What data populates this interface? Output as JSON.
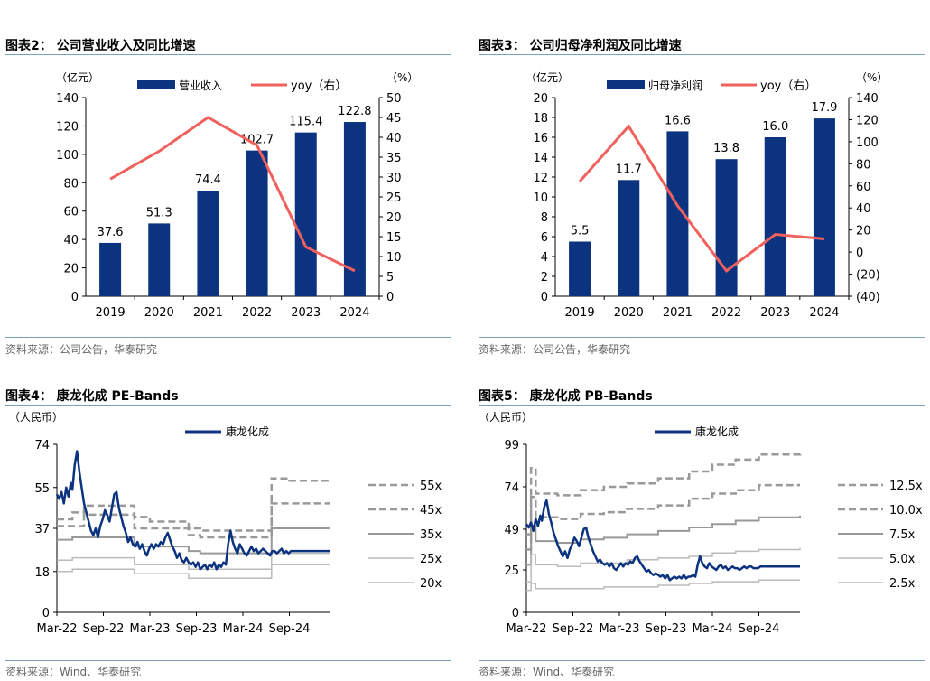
{
  "colors": {
    "bar": "#0b3380",
    "yoy": "#f0605c",
    "line": "#0b3380",
    "band_dark": "#999999",
    "band_light": "#bbbbbb"
  },
  "panels": [
    {
      "title": "图表2： 公司营业收入及同比增速",
      "source": "资料来源：公司公告，华泰研究",
      "left_unit": "（亿元）",
      "right_unit": "（%）",
      "legend": [
        "营业收入",
        "yoy（右）"
      ]
    },
    {
      "title": "图表3： 公司归母净利润及同比增速",
      "source": "资料来源：公司公告，华泰研究",
      "left_unit": "（亿元）",
      "right_unit": "（%）",
      "legend": [
        "归母净利润",
        "yoy（右）"
      ]
    },
    {
      "title": "图表4： 康龙化成 PE-Bands",
      "source": "资料来源：Wind、华泰研究",
      "left_unit": "（人民币）",
      "legend": [
        "康龙化成"
      ]
    },
    {
      "title": "图表5： 康龙化成 PB-Bands",
      "source": "资料来源：Wind、华泰研究",
      "left_unit": "（人民币）",
      "legend": [
        "康龙化成"
      ]
    }
  ],
  "chart_data": [
    {
      "type": "bar",
      "categories": [
        "2019",
        "2020",
        "2021",
        "2022",
        "2023",
        "2024"
      ],
      "series": [
        {
          "name": "营业收入",
          "type": "bar",
          "axis": "left",
          "values": [
            37.6,
            51.3,
            74.4,
            102.7,
            115.4,
            122.8
          ],
          "labels": [
            "37.6",
            "51.3",
            "74.4",
            "102.7",
            "115.4",
            "122.8"
          ]
        },
        {
          "name": "yoy（右）",
          "type": "line",
          "axis": "right",
          "values": [
            29.5,
            36.5,
            45.0,
            38.0,
            12.4,
            6.4
          ]
        }
      ],
      "ylim": [
        0,
        140
      ],
      "yticks": [
        "0",
        "20",
        "40",
        "60",
        "80",
        "100",
        "120",
        "140"
      ],
      "y2lim": [
        0,
        50
      ],
      "y2ticks": [
        "0",
        "5",
        "10",
        "15",
        "20",
        "25",
        "30",
        "35",
        "40",
        "45",
        "50"
      ],
      "legend_position": "top"
    },
    {
      "type": "bar",
      "categories": [
        "2019",
        "2020",
        "2021",
        "2022",
        "2023",
        "2024"
      ],
      "series": [
        {
          "name": "归母净利润",
          "type": "bar",
          "axis": "left",
          "values": [
            5.5,
            11.7,
            16.6,
            13.8,
            16.0,
            17.9
          ],
          "labels": [
            "5.5",
            "11.7",
            "16.6",
            "13.8",
            "16.0",
            "17.9"
          ]
        },
        {
          "name": "yoy（右）",
          "type": "line",
          "axis": "right",
          "values": [
            64,
            114,
            42,
            -17,
            16,
            12
          ]
        }
      ],
      "ylim": [
        0,
        20
      ],
      "yticks": [
        "0",
        "2",
        "4",
        "6",
        "8",
        "10",
        "12",
        "14",
        "16",
        "18",
        "20"
      ],
      "y2lim": [
        -40,
        140
      ],
      "y2ticks": [
        "(40)",
        "(20)",
        "0",
        "20",
        "40",
        "60",
        "80",
        "100",
        "120",
        "140"
      ],
      "legend_position": "top"
    },
    {
      "type": "line",
      "x_range": [
        "2022-03",
        "2025-02"
      ],
      "xticks": [
        "Mar-22",
        "Sep-22",
        "Mar-23",
        "Sep-23",
        "Mar-24",
        "Sep-24"
      ],
      "ylim": [
        0,
        74
      ],
      "yticks": [
        "0",
        "18",
        "37",
        "55",
        "74"
      ],
      "price_series": {
        "name": "康龙化成",
        "x": [
          0,
          0.3,
          0.6,
          0.9,
          1.2,
          1.5,
          1.8,
          2.0,
          2.3,
          2.6,
          2.9,
          3.2,
          3.5,
          3.8,
          4.1,
          4.4,
          4.7,
          5.0,
          5.3,
          5.6,
          5.9,
          6.2,
          6.5,
          6.8,
          7.1,
          7.4,
          7.7,
          8.0,
          8.3,
          8.6,
          8.9,
          9.2,
          9.5,
          9.8,
          10.1,
          10.4,
          10.7,
          11.0,
          11.3,
          11.6,
          11.9,
          12.2,
          12.5,
          12.8,
          13.1,
          13.4,
          13.7,
          14.0,
          14.3,
          14.6,
          14.9,
          15.2,
          15.5,
          15.8,
          16.1,
          16.4,
          16.7,
          17.0,
          17.3,
          17.6,
          17.9,
          18.2,
          18.5,
          18.8,
          19.1,
          19.4,
          19.7,
          20.0,
          20.3,
          20.6,
          20.9,
          21.2,
          21.5,
          21.8,
          22.1,
          22.4,
          22.7,
          23.0,
          23.3,
          23.6,
          23.9,
          24.2,
          24.5,
          24.8,
          25.1,
          25.4,
          25.7,
          26.0,
          26.3,
          26.6,
          26.9,
          27.2,
          27.5,
          27.8,
          28.1,
          28.4,
          28.7,
          29.0,
          29.3,
          29.6,
          29.9,
          30.2,
          30.5,
          30.8,
          31.1,
          31.4,
          31.7,
          32.0,
          32.3,
          32.6,
          32.9,
          33.2,
          33.5,
          33.8,
          34.1,
          34.4,
          34.7,
          35.0,
          35.3
        ],
        "y": [
          52,
          50,
          53,
          48,
          55,
          51,
          57,
          54,
          65,
          71,
          62,
          55,
          48,
          44,
          40,
          36,
          34,
          37,
          33,
          38,
          41,
          45,
          43,
          40,
          46,
          52,
          53,
          46,
          42,
          38,
          35,
          31,
          33,
          30,
          29,
          31,
          28,
          30,
          27,
          25,
          28,
          30,
          28,
          30,
          29,
          31,
          30,
          33,
          35,
          32,
          29,
          27,
          24,
          26,
          23,
          22,
          24,
          22,
          21,
          22,
          20,
          22,
          19,
          20,
          21,
          19,
          21,
          20,
          22,
          19,
          21,
          20,
          22,
          21,
          30,
          36,
          31,
          28,
          26,
          30,
          28,
          26,
          25,
          27,
          29,
          27,
          28,
          26,
          27,
          28,
          27,
          26,
          25,
          27,
          27,
          26,
          27,
          28,
          26,
          27,
          26,
          27,
          27,
          27,
          27,
          27,
          27,
          27,
          27,
          27,
          27,
          27,
          27,
          27,
          27,
          27,
          27,
          27,
          27
        ]
      },
      "bands": [
        {
          "name": "55x",
          "style": "dashed",
          "steps": [
            [
              0,
              41
            ],
            [
              2.0,
              44
            ],
            [
              3.5,
              47
            ],
            [
              10.0,
              42
            ],
            [
              12.0,
              40
            ],
            [
              17.0,
              37
            ],
            [
              18.5,
              36
            ],
            [
              27.7,
              59
            ],
            [
              30.0,
              58
            ],
            [
              35.3,
              58
            ]
          ]
        },
        {
          "name": "45x",
          "style": "dashed",
          "steps": [
            [
              0,
              38
            ],
            [
              3.5,
              43
            ],
            [
              10.0,
              37
            ],
            [
              17.0,
              34
            ],
            [
              18.5,
              33
            ],
            [
              27.7,
              48
            ],
            [
              35.3,
              48
            ]
          ]
        },
        {
          "name": "35x",
          "style": "solid",
          "steps": [
            [
              0,
              32
            ],
            [
              2.0,
              33
            ],
            [
              3.5,
              33
            ],
            [
              10.0,
              29
            ],
            [
              17.0,
              27
            ],
            [
              18.5,
              26
            ],
            [
              27.7,
              37
            ],
            [
              35.3,
              37
            ]
          ]
        },
        {
          "name": "25x",
          "style": "solid",
          "steps": [
            [
              0,
              23
            ],
            [
              2.0,
              24
            ],
            [
              3.5,
              24
            ],
            [
              10.0,
              21
            ],
            [
              17.0,
              19
            ],
            [
              27.7,
              26
            ],
            [
              35.3,
              26
            ]
          ]
        },
        {
          "name": "20x",
          "style": "solid",
          "steps": [
            [
              0,
              18
            ],
            [
              2.0,
              19
            ],
            [
              3.5,
              19
            ],
            [
              10.0,
              17
            ],
            [
              17.0,
              15
            ],
            [
              27.7,
              21
            ],
            [
              35.3,
              21
            ]
          ]
        }
      ],
      "legend_position": "right"
    },
    {
      "type": "line",
      "x_range": [
        "2022-03",
        "2025-02"
      ],
      "xticks": [
        "Mar-22",
        "Sep-22",
        "Mar-23",
        "Sep-23",
        "Mar-24",
        "Sep-24"
      ],
      "ylim": [
        0,
        99
      ],
      "yticks": [
        "0",
        "25",
        "49",
        "74",
        "99"
      ],
      "price_series": {
        "name": "康龙化成",
        "x": [
          0,
          0.3,
          0.6,
          0.9,
          1.2,
          1.5,
          1.8,
          2.0,
          2.3,
          2.6,
          2.9,
          3.2,
          3.5,
          3.8,
          4.1,
          4.4,
          4.7,
          5.0,
          5.3,
          5.6,
          5.9,
          6.2,
          6.5,
          6.8,
          7.1,
          7.4,
          7.7,
          8.0,
          8.3,
          8.6,
          8.9,
          9.2,
          9.5,
          9.8,
          10.1,
          10.4,
          10.7,
          11.0,
          11.3,
          11.6,
          11.9,
          12.2,
          12.5,
          12.8,
          13.1,
          13.4,
          13.7,
          14.0,
          14.3,
          14.6,
          14.9,
          15.2,
          15.5,
          15.8,
          16.1,
          16.4,
          16.7,
          17.0,
          17.3,
          17.6,
          17.9,
          18.2,
          18.5,
          18.8,
          19.1,
          19.4,
          19.7,
          20.0,
          20.3,
          20.6,
          20.9,
          21.2,
          21.5,
          21.8,
          22.1,
          22.4,
          22.7,
          23.0,
          23.3,
          23.6,
          23.9,
          24.2,
          24.5,
          24.8,
          25.1,
          25.4,
          25.7,
          26.0,
          26.3,
          26.6,
          26.9,
          27.2,
          27.5,
          27.8,
          28.1,
          28.4,
          28.7,
          29.0,
          29.3,
          29.6,
          29.9,
          30.2,
          30.5,
          30.8,
          31.1,
          31.4,
          31.7,
          32.0,
          32.3,
          32.6,
          32.9,
          33.2,
          33.5,
          33.8,
          34.1,
          34.4,
          34.7,
          35.0,
          35.3
        ],
        "y": [
          52,
          50,
          53,
          48,
          55,
          51,
          57,
          54,
          62,
          66,
          58,
          53,
          47,
          43,
          39,
          36,
          33,
          36,
          32,
          37,
          40,
          44,
          42,
          39,
          44,
          49,
          50,
          44,
          40,
          36,
          33,
          30,
          31,
          29,
          28,
          29,
          27,
          29,
          26,
          25,
          27,
          29,
          27,
          29,
          28,
          30,
          29,
          32,
          33,
          30,
          28,
          26,
          24,
          25,
          23,
          22,
          23,
          22,
          21,
          22,
          20,
          22,
          19,
          20,
          21,
          20,
          21,
          20,
          22,
          20,
          21,
          21,
          22,
          21,
          28,
          33,
          29,
          27,
          26,
          29,
          27,
          26,
          25,
          27,
          28,
          26,
          27,
          25,
          26,
          27,
          26,
          26,
          25,
          26,
          27,
          26,
          27,
          27,
          26,
          26,
          26,
          27,
          27,
          27,
          27,
          27,
          27,
          27,
          27,
          27,
          27,
          27,
          27,
          27,
          27,
          27,
          27,
          27,
          27
        ]
      },
      "bands": [
        {
          "name": "12.5x",
          "style": "dashed",
          "steps": [
            [
              0,
              46
            ],
            [
              0.6,
              85
            ],
            [
              1.2,
              70
            ],
            [
              4.0,
              69
            ],
            [
              7.0,
              72
            ],
            [
              10.0,
              74
            ],
            [
              13.0,
              76
            ],
            [
              17.0,
              79
            ],
            [
              21.0,
              83
            ],
            [
              24.0,
              87
            ],
            [
              27.0,
              90
            ],
            [
              30.0,
              93
            ],
            [
              35.3,
              94
            ]
          ]
        },
        {
          "name": "10.0x",
          "style": "dashed",
          "steps": [
            [
              0,
              37
            ],
            [
              0.6,
              68
            ],
            [
              1.2,
              56
            ],
            [
              4.0,
              55
            ],
            [
              7.0,
              58
            ],
            [
              10.0,
              59
            ],
            [
              13.0,
              61
            ],
            [
              17.0,
              63
            ],
            [
              21.0,
              67
            ],
            [
              24.0,
              70
            ],
            [
              27.0,
              72
            ],
            [
              30.0,
              75
            ],
            [
              35.3,
              75
            ]
          ]
        },
        {
          "name": "7.5x",
          "style": "solid",
          "steps": [
            [
              0,
              28
            ],
            [
              0.6,
              51
            ],
            [
              1.2,
              42
            ],
            [
              4.0,
              41
            ],
            [
              7.0,
              43
            ],
            [
              10.0,
              44
            ],
            [
              13.0,
              46
            ],
            [
              17.0,
              48
            ],
            [
              21.0,
              50
            ],
            [
              24.0,
              52
            ],
            [
              27.0,
              54
            ],
            [
              30.0,
              56
            ],
            [
              35.3,
              57
            ]
          ]
        },
        {
          "name": "5.0x",
          "style": "solid",
          "steps": [
            [
              0,
              18
            ],
            [
              0.6,
              34
            ],
            [
              1.2,
              28
            ],
            [
              4.0,
              27
            ],
            [
              7.0,
              29
            ],
            [
              10.0,
              29
            ],
            [
              13.0,
              31
            ],
            [
              17.0,
              32
            ],
            [
              21.0,
              33
            ],
            [
              24.0,
              35
            ],
            [
              27.0,
              36
            ],
            [
              30.0,
              37
            ],
            [
              35.3,
              38
            ]
          ]
        },
        {
          "name": "2.5x",
          "style": "solid",
          "steps": [
            [
              0,
              13
            ],
            [
              0.6,
              17
            ],
            [
              1.2,
              14
            ],
            [
              4.0,
              14
            ],
            [
              7.0,
              14
            ],
            [
              10.0,
              15
            ],
            [
              13.0,
              15
            ],
            [
              17.0,
              16
            ],
            [
              21.0,
              17
            ],
            [
              24.0,
              18
            ],
            [
              27.0,
              18
            ],
            [
              30.0,
              19
            ],
            [
              35.3,
              19
            ]
          ]
        }
      ],
      "legend_position": "right"
    }
  ]
}
